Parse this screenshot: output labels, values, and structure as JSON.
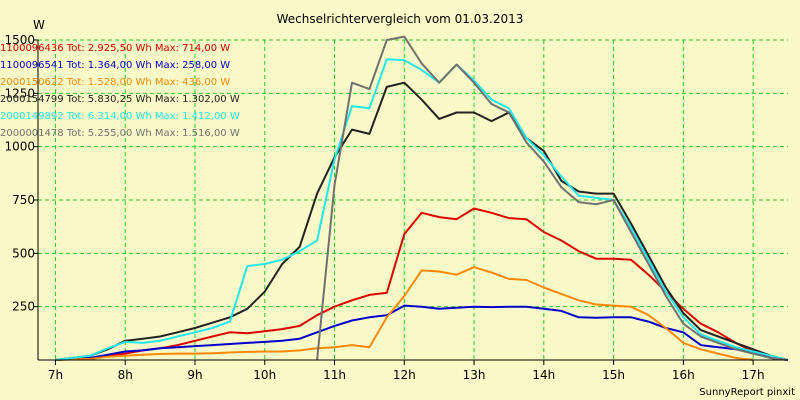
{
  "colors": {
    "background": "#fafac8",
    "plot_background": "#fafac8",
    "grid": "#22cc22",
    "axis": "#000000"
  },
  "chart_data": {
    "type": "line",
    "title": "Wechselrichtervergleich vom 01.03.2013",
    "ylabel": "W",
    "xlabel": "",
    "ylim": [
      0,
      1500
    ],
    "xlim": [
      6.75,
      17.5
    ],
    "grid": true,
    "legend_position": "top-left",
    "x_ticks": [
      7,
      8,
      9,
      10,
      11,
      12,
      13,
      14,
      15,
      16,
      17
    ],
    "x_tick_labels": [
      "7h",
      "8h",
      "9h",
      "10h",
      "11h",
      "12h",
      "13h",
      "14h",
      "15h",
      "16h",
      "17h"
    ],
    "y_ticks": [
      250,
      500,
      750,
      1000,
      1250,
      1500
    ],
    "y_tick_labels": [
      "250",
      "500",
      "750",
      "1000",
      "1250",
      "1500"
    ],
    "credit": "SunnyReport pinxit",
    "series": [
      {
        "name": "1100096436 Tot: 2.925,50 Wh Max: 714,00 W",
        "color": "#dd0000",
        "points": [
          [
            7,
            0
          ],
          [
            7.5,
            10
          ],
          [
            7.75,
            20
          ],
          [
            8,
            30
          ],
          [
            8.25,
            45
          ],
          [
            8.5,
            55
          ],
          [
            8.75,
            70
          ],
          [
            9,
            90
          ],
          [
            9.25,
            110
          ],
          [
            9.5,
            130
          ],
          [
            9.75,
            125
          ],
          [
            10,
            135
          ],
          [
            10.25,
            145
          ],
          [
            10.5,
            160
          ],
          [
            10.75,
            210
          ],
          [
            11,
            250
          ],
          [
            11.25,
            280
          ],
          [
            11.5,
            305
          ],
          [
            11.75,
            315
          ],
          [
            12,
            590
          ],
          [
            12.25,
            690
          ],
          [
            12.5,
            670
          ],
          [
            12.75,
            660
          ],
          [
            13,
            710
          ],
          [
            13.25,
            690
          ],
          [
            13.5,
            665
          ],
          [
            13.75,
            660
          ],
          [
            14,
            600
          ],
          [
            14.25,
            560
          ],
          [
            14.5,
            510
          ],
          [
            14.75,
            475
          ],
          [
            15,
            475
          ],
          [
            15.25,
            470
          ],
          [
            15.5,
            400
          ],
          [
            15.75,
            320
          ],
          [
            16,
            240
          ],
          [
            16.25,
            170
          ],
          [
            16.5,
            130
          ],
          [
            16.75,
            80
          ],
          [
            17,
            40
          ],
          [
            17.25,
            10
          ],
          [
            17.5,
            0
          ]
        ]
      },
      {
        "name": "1100096541 Tot: 1.364,00 Wh Max: 258,00 W",
        "color": "#0000cc",
        "points": [
          [
            7,
            0
          ],
          [
            7.5,
            10
          ],
          [
            7.75,
            25
          ],
          [
            8,
            40
          ],
          [
            8.25,
            45
          ],
          [
            8.5,
            55
          ],
          [
            8.75,
            60
          ],
          [
            9,
            65
          ],
          [
            9.25,
            70
          ],
          [
            9.5,
            75
          ],
          [
            9.75,
            80
          ],
          [
            10,
            85
          ],
          [
            10.25,
            90
          ],
          [
            10.5,
            100
          ],
          [
            10.75,
            130
          ],
          [
            11,
            160
          ],
          [
            11.25,
            185
          ],
          [
            11.5,
            200
          ],
          [
            11.75,
            210
          ],
          [
            12,
            255
          ],
          [
            12.25,
            250
          ],
          [
            12.5,
            240
          ],
          [
            12.75,
            245
          ],
          [
            13,
            250
          ],
          [
            13.25,
            248
          ],
          [
            13.5,
            250
          ],
          [
            13.75,
            250
          ],
          [
            14,
            240
          ],
          [
            14.25,
            230
          ],
          [
            14.5,
            200
          ],
          [
            14.75,
            198
          ],
          [
            15,
            200
          ],
          [
            15.25,
            200
          ],
          [
            15.5,
            180
          ],
          [
            15.75,
            150
          ],
          [
            16,
            130
          ],
          [
            16.25,
            70
          ],
          [
            16.5,
            60
          ],
          [
            16.75,
            50
          ],
          [
            17,
            40
          ],
          [
            17.25,
            10
          ],
          [
            17.5,
            0
          ]
        ]
      },
      {
        "name": "2000150622 Tot: 1.528,00 Wh Max: 436,00 W",
        "color": "#ff8800",
        "points": [
          [
            7,
            0
          ],
          [
            7.5,
            5
          ],
          [
            7.75,
            15
          ],
          [
            8,
            20
          ],
          [
            8.25,
            25
          ],
          [
            8.5,
            28
          ],
          [
            8.75,
            30
          ],
          [
            9,
            30
          ],
          [
            9.25,
            32
          ],
          [
            9.5,
            35
          ],
          [
            9.75,
            38
          ],
          [
            10,
            40
          ],
          [
            10.25,
            40
          ],
          [
            10.5,
            45
          ],
          [
            10.75,
            55
          ],
          [
            11,
            60
          ],
          [
            11.25,
            70
          ],
          [
            11.5,
            60
          ],
          [
            11.75,
            200
          ],
          [
            12,
            300
          ],
          [
            12.25,
            420
          ],
          [
            12.5,
            415
          ],
          [
            12.75,
            400
          ],
          [
            13,
            435
          ],
          [
            13.25,
            410
          ],
          [
            13.5,
            380
          ],
          [
            13.75,
            375
          ],
          [
            14,
            340
          ],
          [
            14.25,
            310
          ],
          [
            14.5,
            280
          ],
          [
            14.75,
            260
          ],
          [
            15,
            255
          ],
          [
            15.25,
            250
          ],
          [
            15.5,
            210
          ],
          [
            15.75,
            150
          ],
          [
            16,
            80
          ],
          [
            16.25,
            50
          ],
          [
            16.5,
            30
          ],
          [
            16.75,
            10
          ],
          [
            17,
            0
          ]
        ]
      },
      {
        "name": "2000154799 Tot: 5.830,25 Wh Max: 1.302,00 W",
        "color": "#222222",
        "points": [
          [
            7,
            0
          ],
          [
            7.5,
            20
          ],
          [
            7.75,
            50
          ],
          [
            8,
            90
          ],
          [
            8.25,
            100
          ],
          [
            8.5,
            110
          ],
          [
            8.75,
            130
          ],
          [
            9,
            150
          ],
          [
            9.25,
            175
          ],
          [
            9.5,
            200
          ],
          [
            9.75,
            240
          ],
          [
            10,
            320
          ],
          [
            10.25,
            450
          ],
          [
            10.5,
            530
          ],
          [
            10.75,
            780
          ],
          [
            11,
            950
          ],
          [
            11.25,
            1080
          ],
          [
            11.5,
            1060
          ],
          [
            11.75,
            1280
          ],
          [
            12,
            1300
          ],
          [
            12.25,
            1220
          ],
          [
            12.5,
            1130
          ],
          [
            12.75,
            1160
          ],
          [
            13,
            1160
          ],
          [
            13.25,
            1120
          ],
          [
            13.5,
            1160
          ],
          [
            13.75,
            1040
          ],
          [
            14,
            980
          ],
          [
            14.25,
            840
          ],
          [
            14.5,
            790
          ],
          [
            14.75,
            780
          ],
          [
            15,
            780
          ],
          [
            15.25,
            640
          ],
          [
            15.5,
            490
          ],
          [
            15.75,
            340
          ],
          [
            16,
            220
          ],
          [
            16.25,
            140
          ],
          [
            16.5,
            110
          ],
          [
            16.75,
            80
          ],
          [
            17,
            50
          ],
          [
            17.25,
            20
          ],
          [
            17.5,
            0
          ]
        ]
      },
      {
        "name": "2000149892 Tot: 6.314,00 Wh Max: 1.412,00 W",
        "color": "#22e6ee",
        "points": [
          [
            7,
            0
          ],
          [
            7.5,
            20
          ],
          [
            7.75,
            55
          ],
          [
            8,
            85
          ],
          [
            8.25,
            80
          ],
          [
            8.5,
            90
          ],
          [
            8.75,
            110
          ],
          [
            9,
            130
          ],
          [
            9.25,
            150
          ],
          [
            9.5,
            180
          ],
          [
            9.75,
            440
          ],
          [
            10,
            450
          ],
          [
            10.25,
            470
          ],
          [
            10.5,
            510
          ],
          [
            10.75,
            560
          ],
          [
            11,
            940
          ],
          [
            11.25,
            1190
          ],
          [
            11.5,
            1180
          ],
          [
            11.75,
            1410
          ],
          [
            12,
            1405
          ],
          [
            12.25,
            1360
          ],
          [
            12.5,
            1300
          ],
          [
            12.75,
            1385
          ],
          [
            13,
            1310
          ],
          [
            13.25,
            1220
          ],
          [
            13.5,
            1180
          ],
          [
            13.75,
            1040
          ],
          [
            14,
            960
          ],
          [
            14.25,
            860
          ],
          [
            14.5,
            770
          ],
          [
            14.75,
            760
          ],
          [
            15,
            750
          ],
          [
            15.25,
            620
          ],
          [
            15.5,
            470
          ],
          [
            15.75,
            320
          ],
          [
            16,
            200
          ],
          [
            16.25,
            120
          ],
          [
            16.5,
            90
          ],
          [
            16.75,
            60
          ],
          [
            17,
            40
          ],
          [
            17.25,
            20
          ],
          [
            17.5,
            0
          ]
        ]
      },
      {
        "name": "2000001478 Tot: 5.255,00 Wh Max: 1.516,00 W",
        "color": "#707070",
        "points": [
          [
            10.75,
            0
          ],
          [
            11,
            820
          ],
          [
            11.25,
            1300
          ],
          [
            11.5,
            1270
          ],
          [
            11.75,
            1500
          ],
          [
            12,
            1516
          ],
          [
            12.25,
            1390
          ],
          [
            12.5,
            1300
          ],
          [
            12.75,
            1385
          ],
          [
            13,
            1300
          ],
          [
            13.25,
            1200
          ],
          [
            13.5,
            1160
          ],
          [
            13.75,
            1020
          ],
          [
            14,
            930
          ],
          [
            14.25,
            810
          ],
          [
            14.5,
            740
          ],
          [
            14.75,
            730
          ],
          [
            15,
            750
          ],
          [
            15.25,
            600
          ],
          [
            15.5,
            450
          ],
          [
            15.75,
            300
          ],
          [
            16,
            170
          ],
          [
            16.25,
            110
          ],
          [
            16.5,
            80
          ],
          [
            16.75,
            50
          ],
          [
            17,
            30
          ],
          [
            17.25,
            10
          ],
          [
            17.5,
            0
          ]
        ]
      }
    ]
  }
}
